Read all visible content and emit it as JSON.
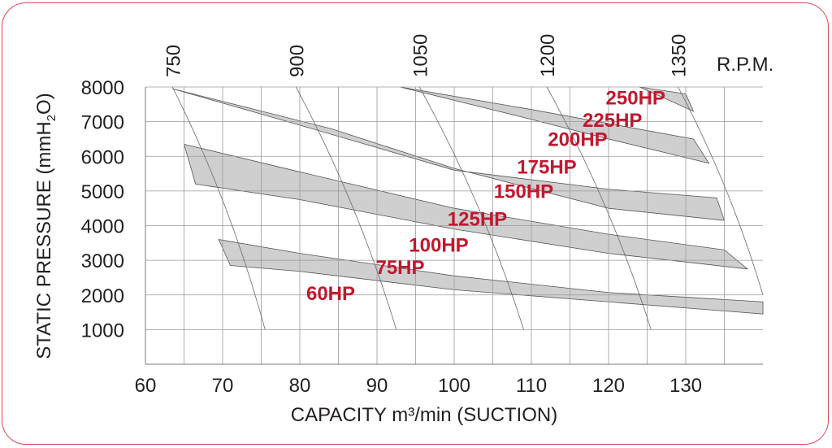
{
  "chart_data": {
    "type": "area",
    "xlabel": "CAPACITY m³/min (SUCTION)",
    "ylabel": {
      "main": "STATIC PRESSURE (mmH",
      "sub": "2",
      "end": "O)"
    },
    "xlim": [
      60,
      140
    ],
    "ylim": [
      0,
      8000
    ],
    "xticks": [
      60,
      70,
      80,
      90,
      100,
      110,
      120,
      130
    ],
    "yticks": [
      1000,
      2000,
      3000,
      4000,
      5000,
      6000,
      7000,
      8000
    ],
    "grid": true,
    "colors": {
      "band": "#cfcfd0",
      "band_edge": "#555555",
      "grid": "#9a9a9a",
      "hp_label": "#c0182f",
      "frame": "#d94a5a"
    },
    "rpm": {
      "unit_label": "R.P.M.",
      "curves": [
        {
          "label": "750",
          "points": [
            [
              63.5,
              8000
            ],
            [
              75.5,
              1000
            ]
          ]
        },
        {
          "label": "900",
          "points": [
            [
              79.5,
              8000
            ],
            [
              92.5,
              1000
            ]
          ]
        },
        {
          "label": "1050",
          "points": [
            [
              95.5,
              8000
            ],
            [
              109,
              1000
            ]
          ]
        },
        {
          "label": "1200",
          "points": [
            [
              112,
              8000
            ],
            [
              125.5,
              1000
            ]
          ]
        },
        {
          "label": "1350",
          "points": [
            [
              129,
              8000
            ],
            [
              140,
              2000
            ]
          ]
        }
      ]
    },
    "series": [
      {
        "name": "band-low",
        "upper": [
          [
            69.5,
            3600
          ],
          [
            80,
            3200
          ],
          [
            100,
            2550
          ],
          [
            120,
            2070
          ],
          [
            140,
            1800
          ]
        ],
        "lower": [
          [
            71,
            2850
          ],
          [
            80,
            2680
          ],
          [
            100,
            2150
          ],
          [
            120,
            1800
          ],
          [
            140,
            1450
          ]
        ]
      },
      {
        "name": "band-mid",
        "upper": [
          [
            65,
            6350
          ],
          [
            80,
            5550
          ],
          [
            100,
            4500
          ],
          [
            120,
            3750
          ],
          [
            135,
            3300
          ]
        ],
        "lower": [
          [
            66.5,
            5200
          ],
          [
            80,
            4750
          ],
          [
            100,
            3900
          ],
          [
            120,
            3200
          ],
          [
            138,
            2750
          ]
        ]
      },
      {
        "name": "band-high",
        "upper": [
          [
            63.5,
            7950
          ],
          [
            80,
            6900
          ],
          [
            100,
            5600
          ],
          [
            120,
            5050
          ],
          [
            134,
            4800
          ]
        ],
        "lower": [
          [
            84,
            6800
          ],
          [
            100,
            5650
          ],
          [
            120,
            4500
          ],
          [
            135,
            4150
          ]
        ]
      },
      {
        "name": "band-top",
        "upper": [
          [
            93,
            8000
          ],
          [
            110,
            7350
          ],
          [
            131,
            6500
          ]
        ],
        "lower": [
          [
            108.5,
            7150
          ],
          [
            120,
            6500
          ],
          [
            133,
            5800
          ]
        ]
      },
      {
        "name": "band-250",
        "upper": [
          [
            124,
            8000
          ],
          [
            130,
            7800
          ]
        ],
        "lower": [
          [
            124.5,
            7950
          ],
          [
            131,
            7300
          ]
        ]
      }
    ],
    "annotations": [
      {
        "text": "250HP",
        "x": 123.5,
        "y": 7500
      },
      {
        "text": "225HP",
        "x": 120.5,
        "y": 6850
      },
      {
        "text": "200HP",
        "x": 116,
        "y": 6300
      },
      {
        "text": "175HP",
        "x": 112,
        "y": 5500
      },
      {
        "text": "150HP",
        "x": 109,
        "y": 4800
      },
      {
        "text": "125HP",
        "x": 103,
        "y": 4000
      },
      {
        "text": "100HP",
        "x": 98,
        "y": 3250
      },
      {
        "text": "75HP",
        "x": 93,
        "y": 2600
      },
      {
        "text": "60HP",
        "x": 84,
        "y": 1850
      }
    ]
  }
}
